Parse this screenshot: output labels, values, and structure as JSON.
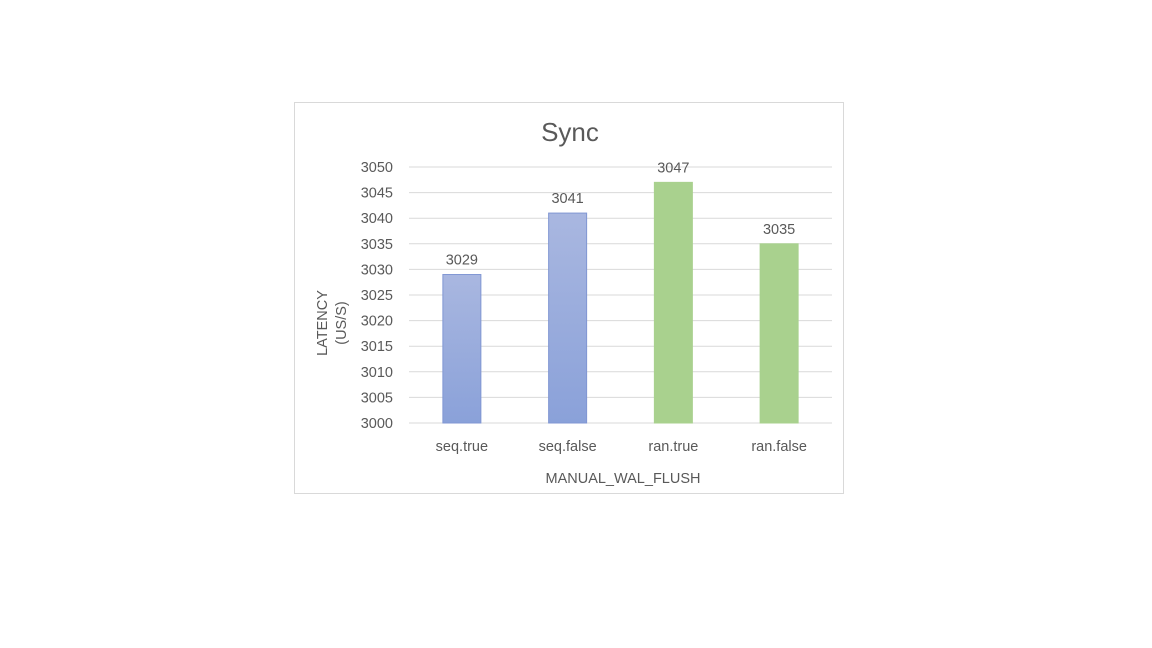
{
  "chart_data": {
    "type": "bar",
    "title": "Sync",
    "xlabel": "MANUAL_WAL_FLUSH",
    "ylabel_lines": [
      "LATENCY",
      "(US/S)"
    ],
    "categories": [
      "seq.true",
      "seq.false",
      "ran.true",
      "ran.false"
    ],
    "values": [
      3029,
      3041,
      3047,
      3035
    ],
    "data_labels": [
      "3029",
      "3041",
      "3047",
      "3035"
    ],
    "bar_colors": [
      "blue",
      "blue",
      "green",
      "green"
    ],
    "ylim": [
      3000,
      3050
    ],
    "yticks": [
      3000,
      3005,
      3010,
      3015,
      3020,
      3025,
      3030,
      3035,
      3040,
      3045,
      3050
    ],
    "grid": true,
    "legend": "none"
  },
  "colors": {
    "blue_top": "#a9b7e0",
    "blue_bottom": "#8aa1d9",
    "blue_border": "#8096d3",
    "green": "#a9d18e",
    "green_border": "#a9d18e",
    "text": "#595959",
    "grid": "#d9d9d9"
  }
}
